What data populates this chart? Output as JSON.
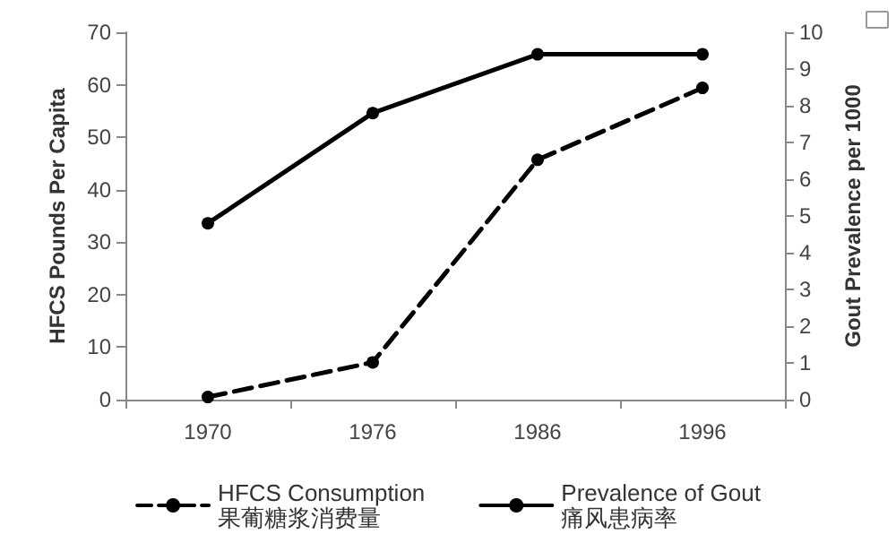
{
  "chart_data": {
    "type": "line",
    "ylabel": "HFCS Pounds Per Capita",
    "y2label": "Gout Prevalence per 1000",
    "categories": [
      "1970",
      "1976",
      "1986",
      "1996"
    ],
    "series": [
      {
        "name": "HFCS Consumption\n果葡糖浆消费量",
        "color": "#000000",
        "values": [
          0.5,
          7.1,
          45.7,
          59.4
        ],
        "line_style": "dashed"
      },
      {
        "name": "Prevalence of Gout\n痛风患病率",
        "color": "#000000",
        "values": [
          4.8,
          7.8,
          9.4,
          9.4
        ],
        "axis": "y2",
        "line_style": "solid"
      }
    ],
    "ylim": [
      0,
      70
    ],
    "yticks": [
      0,
      10,
      20,
      30,
      40,
      50,
      60,
      70
    ],
    "y2lim": [
      0,
      10
    ],
    "y2ticks": [
      0,
      1,
      2,
      3,
      4,
      5,
      6,
      7,
      8,
      9,
      10
    ],
    "marker": "circle",
    "grid": false,
    "legend": "bottom"
  }
}
